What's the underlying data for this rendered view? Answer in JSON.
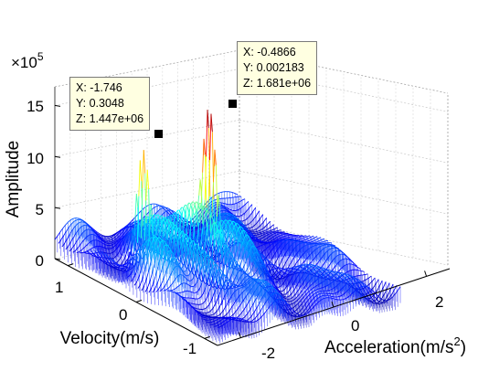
{
  "chart_data": {
    "type": "surface",
    "title": "",
    "zlabel": "Amplitude",
    "ylabel": "Velocity(m/s)",
    "xlabel": "Acceleration(m/s",
    "xlabel_sup": "2",
    "xlabel_close": ")",
    "zlim": [
      0,
      1700000
    ],
    "xlim": [
      -2.5,
      2.5
    ],
    "ylim": [
      -1.2,
      1.2
    ],
    "z_multiplier": "×10",
    "z_multiplier_exp": "5",
    "z_ticks": [
      "0",
      "5",
      "10",
      "15"
    ],
    "y_ticks": [
      "1",
      "0",
      "-1"
    ],
    "x_ticks": [
      "-2",
      "0",
      "2"
    ],
    "grid": true,
    "colormap": "jet",
    "datatips": [
      {
        "x": "X: -1.746",
        "y": "Y: 0.3048",
        "z": "Z: 1.447e+06",
        "xv": -1.746,
        "yv": 0.3048,
        "zv": 1447000
      },
      {
        "x": "X: -0.4866",
        "y": "Y: 0.002183",
        "z": "Z: 1.681e+06",
        "xv": -0.4866,
        "yv": 0.002183,
        "zv": 1681000
      }
    ]
  }
}
